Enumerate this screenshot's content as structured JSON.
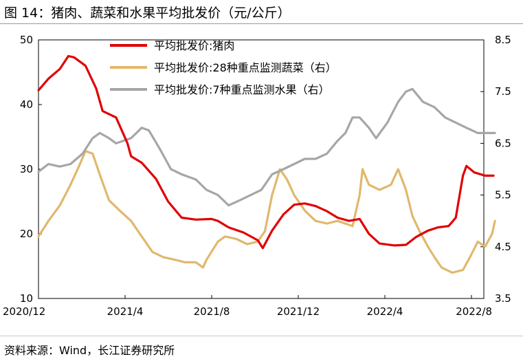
{
  "figure_title": "图 14：猪肉、蔬菜和水果平均批发价（元/公斤）",
  "source_note": "资料来源：Wind，长江证券研究所",
  "chart_data": {
    "type": "line",
    "xlabel": "",
    "ylabel": "",
    "x_ticks": [
      "2020/12",
      "2021/4",
      "2021/8",
      "2021/12",
      "2022/4",
      "2022/8"
    ],
    "y_left": {
      "ylim": [
        10,
        50
      ],
      "ticks": [
        "10",
        "20",
        "30",
        "40",
        "50"
      ]
    },
    "y_right": {
      "ylim": [
        3.5,
        8.5
      ],
      "ticks": [
        "3.5",
        "4.5",
        "5.5",
        "6.5",
        "7.5",
        "8.5"
      ]
    },
    "legend_position": "top-center",
    "grid": false,
    "series": [
      {
        "name": "平均批发价:猪肉",
        "axis": "left",
        "color": "#e00000",
        "points": [
          [
            "2020-12-01",
            42.2
          ],
          [
            "2020-12-15",
            44.0
          ],
          [
            "2020-12-31",
            45.5
          ],
          [
            "2021-01-12",
            47.5
          ],
          [
            "2021-01-20",
            47.3
          ],
          [
            "2021-02-05",
            46.0
          ],
          [
            "2021-02-20",
            42.5
          ],
          [
            "2021-03-01",
            39.0
          ],
          [
            "2021-03-20",
            38.0
          ],
          [
            "2021-04-05",
            34.0
          ],
          [
            "2021-04-10",
            32.0
          ],
          [
            "2021-04-25",
            31.0
          ],
          [
            "2021-05-15",
            28.5
          ],
          [
            "2021-06-01",
            25.0
          ],
          [
            "2021-06-20",
            22.5
          ],
          [
            "2021-07-10",
            22.2
          ],
          [
            "2021-08-01",
            22.3
          ],
          [
            "2021-08-10",
            22.0
          ],
          [
            "2021-08-25",
            21.0
          ],
          [
            "2021-09-15",
            20.2
          ],
          [
            "2021-10-05",
            19.0
          ],
          [
            "2021-10-12",
            17.8
          ],
          [
            "2021-10-25",
            20.5
          ],
          [
            "2021-11-10",
            23.0
          ],
          [
            "2021-11-25",
            24.5
          ],
          [
            "2021-12-10",
            24.7
          ],
          [
            "2021-12-25",
            24.3
          ],
          [
            "2022-01-10",
            23.5
          ],
          [
            "2022-01-25",
            22.5
          ],
          [
            "2022-02-10",
            22.0
          ],
          [
            "2022-02-25",
            22.3
          ],
          [
            "2022-03-10",
            20.0
          ],
          [
            "2022-03-25",
            18.5
          ],
          [
            "2022-04-15",
            18.2
          ],
          [
            "2022-05-01",
            18.3
          ],
          [
            "2022-05-15",
            19.5
          ],
          [
            "2022-06-01",
            20.5
          ],
          [
            "2022-06-15",
            21.0
          ],
          [
            "2022-06-30",
            21.2
          ],
          [
            "2022-07-10",
            22.5
          ],
          [
            "2022-07-20",
            29.0
          ],
          [
            "2022-07-25",
            30.5
          ],
          [
            "2022-08-05",
            29.5
          ],
          [
            "2022-08-20",
            29.0
          ],
          [
            "2022-09-01",
            29.0
          ]
        ]
      },
      {
        "name": "平均批发价:28种重点监测蔬菜（右）",
        "axis": "right",
        "color": "#e0b86c",
        "points": [
          [
            "2020-12-01",
            4.7
          ],
          [
            "2020-12-15",
            5.0
          ],
          [
            "2020-12-31",
            5.3
          ],
          [
            "2021-01-15",
            5.7
          ],
          [
            "2021-01-25",
            6.0
          ],
          [
            "2021-02-05",
            6.35
          ],
          [
            "2021-02-15",
            6.3
          ],
          [
            "2021-02-25",
            5.9
          ],
          [
            "2021-03-10",
            5.4
          ],
          [
            "2021-03-25",
            5.2
          ],
          [
            "2021-04-10",
            5.0
          ],
          [
            "2021-04-25",
            4.7
          ],
          [
            "2021-05-10",
            4.4
          ],
          [
            "2021-05-25",
            4.3
          ],
          [
            "2021-06-10",
            4.25
          ],
          [
            "2021-06-25",
            4.2
          ],
          [
            "2021-07-10",
            4.2
          ],
          [
            "2021-07-20",
            4.1
          ],
          [
            "2021-07-25",
            4.25
          ],
          [
            "2021-08-10",
            4.6
          ],
          [
            "2021-08-20",
            4.7
          ],
          [
            "2021-09-05",
            4.65
          ],
          [
            "2021-09-20",
            4.55
          ],
          [
            "2021-10-05",
            4.6
          ],
          [
            "2021-10-15",
            4.8
          ],
          [
            "2021-10-25",
            5.5
          ],
          [
            "2021-11-05",
            6.0
          ],
          [
            "2021-11-15",
            5.8
          ],
          [
            "2021-11-25",
            5.5
          ],
          [
            "2021-12-10",
            5.2
          ],
          [
            "2021-12-25",
            5.0
          ],
          [
            "2022-01-10",
            4.95
          ],
          [
            "2022-01-25",
            5.0
          ],
          [
            "2022-02-15",
            4.9
          ],
          [
            "2022-02-25",
            5.5
          ],
          [
            "2022-03-01",
            6.0
          ],
          [
            "2022-03-10",
            5.7
          ],
          [
            "2022-03-25",
            5.6
          ],
          [
            "2022-04-10",
            5.7
          ],
          [
            "2022-04-20",
            6.0
          ],
          [
            "2022-05-01",
            5.6
          ],
          [
            "2022-05-10",
            5.1
          ],
          [
            "2022-05-20",
            4.8
          ],
          [
            "2022-06-01",
            4.5
          ],
          [
            "2022-06-10",
            4.3
          ],
          [
            "2022-06-20",
            4.1
          ],
          [
            "2022-07-05",
            4.0
          ],
          [
            "2022-07-20",
            4.05
          ],
          [
            "2022-07-30",
            4.3
          ],
          [
            "2022-08-10",
            4.6
          ],
          [
            "2022-08-20",
            4.5
          ],
          [
            "2022-08-30",
            4.75
          ],
          [
            "2022-09-03",
            5.0
          ]
        ]
      },
      {
        "name": "平均批发价:7种重点监测水果（右）",
        "axis": "right",
        "color": "#a6a6a6",
        "points": [
          [
            "2020-12-01",
            5.95
          ],
          [
            "2020-12-15",
            6.1
          ],
          [
            "2020-12-31",
            6.05
          ],
          [
            "2021-01-15",
            6.1
          ],
          [
            "2021-02-01",
            6.3
          ],
          [
            "2021-02-15",
            6.6
          ],
          [
            "2021-02-25",
            6.7
          ],
          [
            "2021-03-10",
            6.6
          ],
          [
            "2021-03-20",
            6.5
          ],
          [
            "2021-04-10",
            6.6
          ],
          [
            "2021-04-25",
            6.8
          ],
          [
            "2021-05-05",
            6.75
          ],
          [
            "2021-05-20",
            6.4
          ],
          [
            "2021-06-05",
            6.0
          ],
          [
            "2021-06-20",
            5.9
          ],
          [
            "2021-07-10",
            5.8
          ],
          [
            "2021-07-25",
            5.6
          ],
          [
            "2021-08-10",
            5.5
          ],
          [
            "2021-08-25",
            5.3
          ],
          [
            "2021-09-10",
            5.4
          ],
          [
            "2021-09-25",
            5.5
          ],
          [
            "2021-10-10",
            5.6
          ],
          [
            "2021-10-25",
            5.9
          ],
          [
            "2021-11-10",
            6.0
          ],
          [
            "2021-11-25",
            6.1
          ],
          [
            "2021-12-10",
            6.2
          ],
          [
            "2021-12-25",
            6.2
          ],
          [
            "2022-01-10",
            6.3
          ],
          [
            "2022-01-25",
            6.55
          ],
          [
            "2022-02-05",
            6.7
          ],
          [
            "2022-02-15",
            7.0
          ],
          [
            "2022-02-25",
            7.0
          ],
          [
            "2022-03-10",
            6.8
          ],
          [
            "2022-03-20",
            6.6
          ],
          [
            "2022-04-05",
            6.9
          ],
          [
            "2022-04-20",
            7.3
          ],
          [
            "2022-05-01",
            7.5
          ],
          [
            "2022-05-10",
            7.55
          ],
          [
            "2022-05-25",
            7.3
          ],
          [
            "2022-06-10",
            7.2
          ],
          [
            "2022-06-25",
            7.0
          ],
          [
            "2022-07-10",
            6.9
          ],
          [
            "2022-07-25",
            6.8
          ],
          [
            "2022-08-10",
            6.7
          ],
          [
            "2022-08-25",
            6.7
          ],
          [
            "2022-09-03",
            6.7
          ]
        ]
      }
    ]
  }
}
